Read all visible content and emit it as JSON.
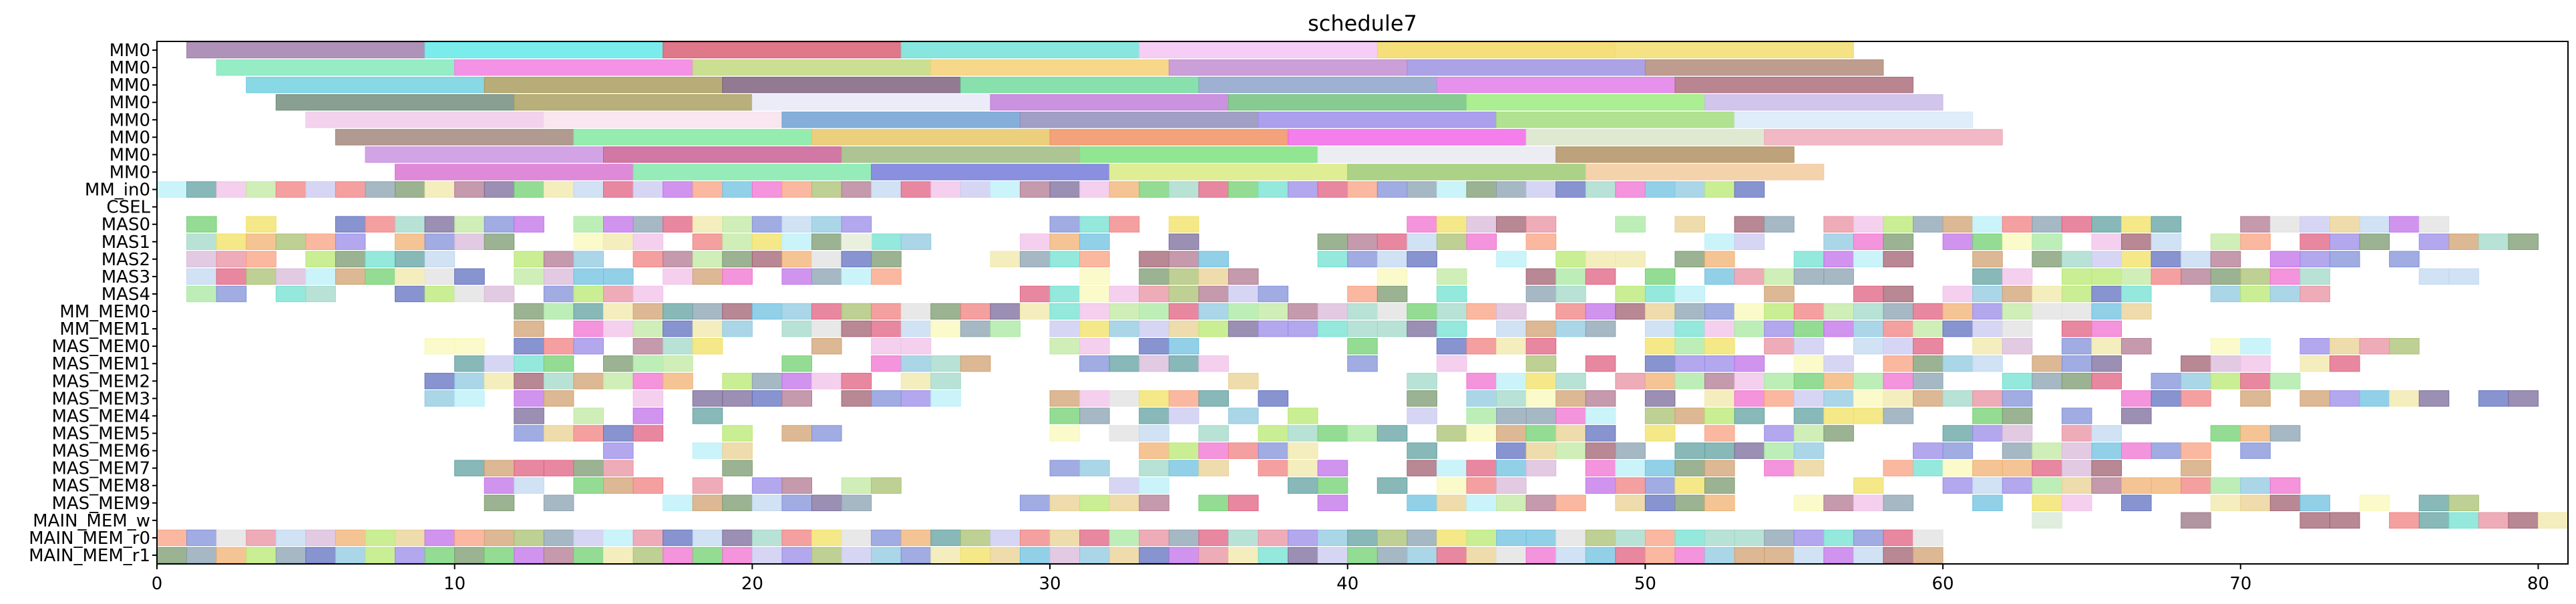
{
  "chart_data": {
    "type": "gantt",
    "title": "schedule7",
    "xlabel": "",
    "ylabel": "",
    "xlim": [
      0,
      81
    ],
    "grid": false,
    "legend": "none",
    "x_ticks": [
      0,
      10,
      20,
      30,
      40,
      50,
      60,
      70,
      80
    ],
    "rows": [
      "MM0",
      "MM0",
      "MM0",
      "MM0",
      "MM0",
      "MM0",
      "MM0",
      "MM0",
      "MM_in0",
      "CSEL",
      "MAS0",
      "MAS1",
      "MAS2",
      "MAS3",
      "MAS4",
      "MM_MEM0",
      "MM_MEM1",
      "MAS_MEM0",
      "MAS_MEM1",
      "MAS_MEM2",
      "MAS_MEM3",
      "MAS_MEM4",
      "MAS_MEM5",
      "MAS_MEM6",
      "MAS_MEM7",
      "MAS_MEM8",
      "MAS_MEM9",
      "MAIN_MEM_w",
      "MAIN_MEM_r0",
      "MAIN_MEM_r1"
    ],
    "mm_long_tasks": [
      [
        [
          1,
          9,
          "#9e7aa8"
        ],
        [
          9,
          17,
          "#5ee8e8"
        ],
        [
          17,
          25,
          "#d85a6e"
        ],
        [
          25,
          33,
          "#6ee0d8"
        ],
        [
          33,
          41,
          "#f4c2f2"
        ],
        [
          41,
          49,
          "#f2d85e"
        ],
        [
          49,
          57,
          "#f2dc6a"
        ]
      ],
      [
        [
          2,
          10,
          "#7ee8b8"
        ],
        [
          10,
          18,
          "#f27ae0"
        ],
        [
          18,
          26,
          "#c0d87a"
        ],
        [
          26,
          34,
          "#f5d070"
        ],
        [
          34,
          42,
          "#c08ad0"
        ],
        [
          42,
          50,
          "#9a8fe0"
        ],
        [
          50,
          58,
          "#b08878"
        ]
      ],
      [
        [
          3,
          11,
          "#6ecfe0"
        ],
        [
          11,
          19,
          "#a89a5a"
        ],
        [
          19,
          27,
          "#7a5e7a"
        ],
        [
          27,
          35,
          "#6edb9a"
        ],
        [
          35,
          43,
          "#8aa0c8"
        ],
        [
          43,
          51,
          "#e07ae8"
        ],
        [
          51,
          59,
          "#a86a78"
        ]
      ],
      [
        [
          4,
          12,
          "#6e8a7a"
        ],
        [
          12,
          20,
          "#a89e5e"
        ],
        [
          20,
          28,
          "#e8e8f8"
        ],
        [
          28,
          36,
          "#c07ad8"
        ],
        [
          36,
          44,
          "#6ec07a"
        ],
        [
          44,
          52,
          "#9aea7a"
        ],
        [
          52,
          60,
          "#c8b8e8"
        ]
      ],
      [
        [
          5,
          13,
          "#f0c8ea"
        ],
        [
          13,
          21,
          "#f8e0ec"
        ],
        [
          21,
          29,
          "#6a9ed0"
        ],
        [
          29,
          37,
          "#8e8ab8"
        ],
        [
          37,
          45,
          "#9a8aea"
        ],
        [
          45,
          53,
          "#a0dc7a"
        ],
        [
          53,
          61,
          "#d8e8f8"
        ]
      ],
      [
        [
          6,
          14,
          "#a08478"
        ],
        [
          14,
          22,
          "#7ee89e"
        ],
        [
          22,
          30,
          "#e6c460"
        ],
        [
          30,
          38,
          "#f08e5e"
        ],
        [
          38,
          46,
          "#f262e6"
        ],
        [
          46,
          54,
          "#d8e4c8"
        ],
        [
          54,
          62,
          "#eea8b8"
        ]
      ],
      [
        [
          7,
          15,
          "#c890e0"
        ],
        [
          15,
          23,
          "#c85a90"
        ],
        [
          23,
          31,
          "#9ab87a"
        ],
        [
          31,
          39,
          "#7ae07a"
        ],
        [
          39,
          47,
          "#e8e8f0"
        ],
        [
          47,
          55,
          "#b08e5e"
        ]
      ],
      [
        [
          8,
          16,
          "#d870d0"
        ],
        [
          16,
          24,
          "#7ee8a8"
        ],
        [
          24,
          32,
          "#7078d8"
        ],
        [
          32,
          40,
          "#d8ea7e"
        ],
        [
          40,
          48,
          "#9ac86e"
        ],
        [
          48,
          56,
          "#f2c89a"
        ]
      ]
    ],
    "short_task_spec": [
      {
        "ranges": [
          [
            0,
            54
          ]
        ]
      },
      {
        "ranges": []
      },
      {
        "ranges": [
          [
            1,
            24
          ],
          [
            30,
            36
          ],
          [
            41,
            68
          ],
          [
            70,
            77
          ]
        ],
        "density": 0.8,
        "seed": 101
      },
      {
        "ranges": [
          [
            1,
            26
          ],
          [
            28,
            35
          ],
          [
            39,
            64
          ],
          [
            65,
            80
          ]
        ],
        "density": 0.72,
        "seed": 202
      },
      {
        "ranges": [
          [
            1,
            25
          ],
          [
            28,
            36
          ],
          [
            38,
            78
          ]
        ],
        "density": 0.7,
        "seed": 303
      },
      {
        "ranges": [
          [
            1,
            25
          ],
          [
            31,
            37
          ],
          [
            41,
            78
          ]
        ],
        "density": 0.7,
        "seed": 404
      },
      {
        "ranges": [
          [
            1,
            18
          ],
          [
            29,
            38
          ],
          [
            40,
            73
          ]
        ],
        "density": 0.8,
        "seed": 505
      },
      {
        "ranges": [
          [
            12,
            67
          ]
        ],
        "density": 0.92,
        "seed": 606
      },
      {
        "ranges": [
          [
            12,
            66
          ]
        ],
        "density": 0.9,
        "seed": 707
      },
      {
        "ranges": [
          [
            9,
            26
          ],
          [
            30,
            35
          ],
          [
            40,
            78
          ]
        ],
        "density": 0.75,
        "seed": 808
      },
      {
        "ranges": [
          [
            10,
            28
          ],
          [
            31,
            36
          ],
          [
            39,
            75
          ]
        ],
        "density": 0.72,
        "seed": 909
      },
      {
        "ranges": [
          [
            9,
            28
          ],
          [
            36,
            37
          ],
          [
            42,
            72
          ]
        ],
        "density": 0.72,
        "seed": 1010
      },
      {
        "ranges": [
          [
            9,
            27
          ],
          [
            30,
            36
          ],
          [
            37,
            80
          ]
        ],
        "density": 0.72,
        "seed": 1111
      },
      {
        "ranges": [
          [
            10,
            19
          ],
          [
            30,
            40
          ],
          [
            41,
            67
          ]
        ],
        "density": 0.68,
        "seed": 1212
      },
      {
        "ranges": [
          [
            10,
            24
          ],
          [
            28,
            36
          ],
          [
            37,
            72
          ]
        ],
        "density": 0.7,
        "seed": 1313
      },
      {
        "ranges": [
          [
            10,
            20
          ],
          [
            32,
            40
          ],
          [
            41,
            72
          ]
        ],
        "density": 0.65,
        "seed": 1414
      },
      {
        "ranges": [
          [
            9,
            20
          ],
          [
            27,
            40
          ],
          [
            42,
            71
          ]
        ],
        "density": 0.66,
        "seed": 1515
      },
      {
        "ranges": [
          [
            10,
            26
          ],
          [
            32,
            40
          ],
          [
            41,
            72
          ]
        ],
        "density": 0.66,
        "seed": 1616
      },
      {
        "ranges": [
          [
            10,
            25
          ],
          [
            29,
            40
          ],
          [
            42,
            78
          ]
        ],
        "density": 0.7,
        "seed": 1717
      },
      {
        "ranges": [
          [
            71,
            81
          ]
        ],
        "density": 0.9,
        "seed": 1818
      },
      {
        "ranges": [
          [
            0,
            60
          ]
        ]
      },
      {
        "ranges": [
          [
            0,
            60
          ]
        ]
      }
    ],
    "short_extras": [
      [
        27,
        68,
        1,
        "#9e7a88"
      ],
      [
        27,
        63,
        1,
        "#d8ead8"
      ],
      [
        11,
        23,
        1,
        "#f0f0f0"
      ]
    ],
    "palette": [
      "#f08080",
      "#8ec8e0",
      "#9a8ae8",
      "#a8e8a0",
      "#b07890",
      "#f0e060",
      "#f8a080",
      "#c0e8a0",
      "#7a9a6e",
      "#f070d0",
      "#70e0d0",
      "#c8c8f0",
      "#f0c0e8",
      "#8090d8",
      "#d0a070",
      "#70d070",
      "#e0e0e0",
      "#c070e8",
      "#6ec0e0",
      "#e8d090",
      "#f8f8b8",
      "#a0d8c8",
      "#e06080",
      "#f0b070",
      "#88a0b0",
      "#a8c070",
      "#60a0a0",
      "#d8b8d8",
      "#b8f0f8",
      "#f0e8a8",
      "#7a6a9a",
      "#e890a0",
      "#6070c0",
      "#c0d8f0",
      "#a06070",
      "#b8e870"
    ]
  }
}
